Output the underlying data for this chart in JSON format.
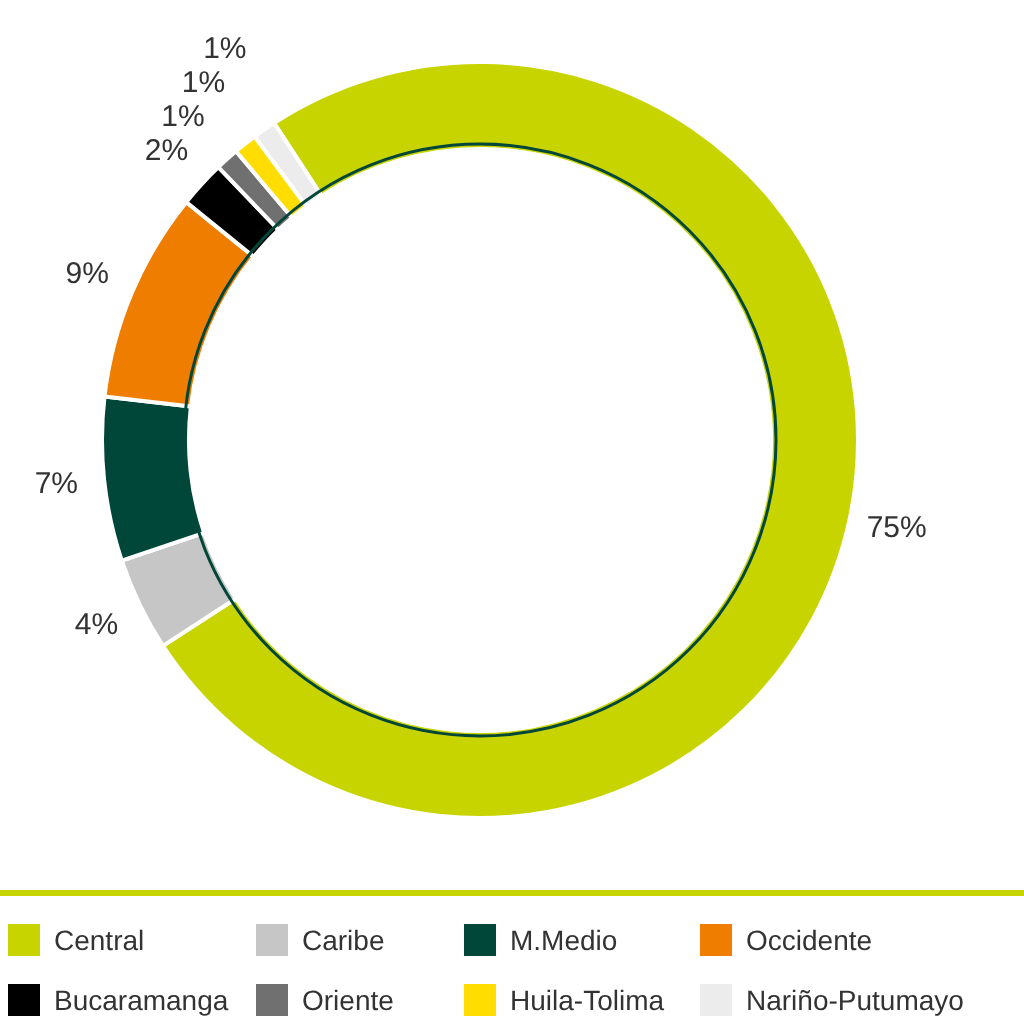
{
  "chart_data": {
    "type": "donut",
    "categories": [
      "Central",
      "Caribe",
      "M.Medio",
      "Occidente",
      "Bucaramanga",
      "Oriente",
      "Huila-Tolima",
      "Nariño-Putumayo"
    ],
    "values": [
      75,
      4,
      7,
      9,
      2,
      1,
      1,
      1
    ],
    "colors": [
      "#c8d400",
      "#c6c6c6",
      "#00473a",
      "#ee7d00",
      "#000000",
      "#707070",
      "#ffdd00",
      "#ececec"
    ],
    "value_labels": [
      "75%",
      "4%",
      "7%",
      "9%",
      "2%",
      "1%",
      "1%",
      "1%"
    ],
    "legend": "bottom"
  }
}
